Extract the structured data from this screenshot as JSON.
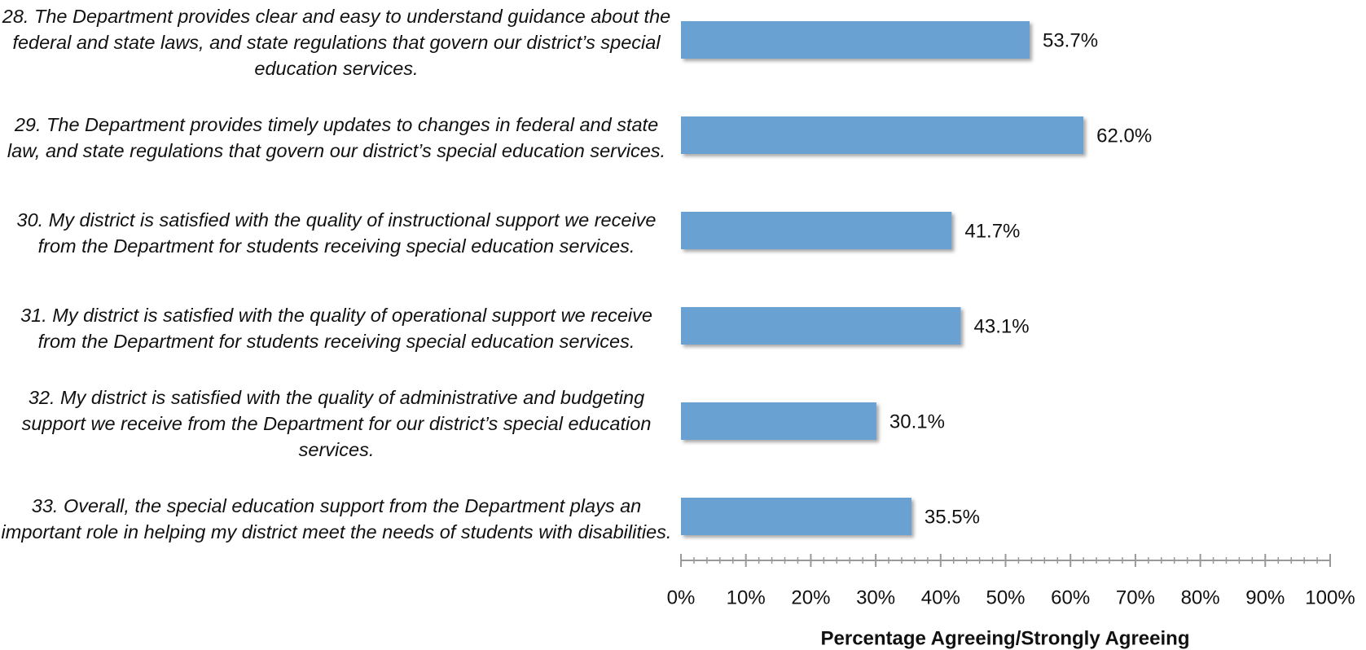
{
  "chart_data": {
    "type": "bar",
    "orientation": "horizontal",
    "categories": [
      "28. The Department provides clear and easy to understand guidance about the federal and state laws, and state regulations that govern our district’s special education services.",
      "29. The Department provides timely updates to changes in federal and state law, and state regulations that govern our district’s special education services.",
      "30. My district is satisfied with the quality of instructional support we receive from the Department for students receiving special education services.",
      "31. My district is satisfied with the quality of operational support we receive from the Department for students receiving special education services.",
      "32. My district is satisfied with the quality of administrative and budgeting support we receive from the Department for our district’s special education services.",
      "33. Overall, the special education support from the Department plays an important role in helping my district meet the needs of students with disabilities."
    ],
    "values": [
      53.7,
      62.0,
      41.7,
      43.1,
      30.1,
      35.5
    ],
    "value_labels": [
      "53.7%",
      "62.0%",
      "41.7%",
      "43.1%",
      "30.1%",
      "35.5%"
    ],
    "color": "#6aa1d3",
    "xlabel": "Percentage Agreeing/Strongly Agreeing",
    "xlim": [
      0,
      100
    ],
    "xticks": [
      {
        "value": 0,
        "label": "0%"
      },
      {
        "value": 10,
        "label": "10%"
      },
      {
        "value": 20,
        "label": "20%"
      },
      {
        "value": 30,
        "label": "30%"
      },
      {
        "value": 40,
        "label": "40%"
      },
      {
        "value": 50,
        "label": "50%"
      },
      {
        "value": 60,
        "label": "60%"
      },
      {
        "value": 70,
        "label": "70%"
      },
      {
        "value": 80,
        "label": "80%"
      },
      {
        "value": 90,
        "label": "90%"
      },
      {
        "value": 100,
        "label": "100%"
      }
    ]
  }
}
